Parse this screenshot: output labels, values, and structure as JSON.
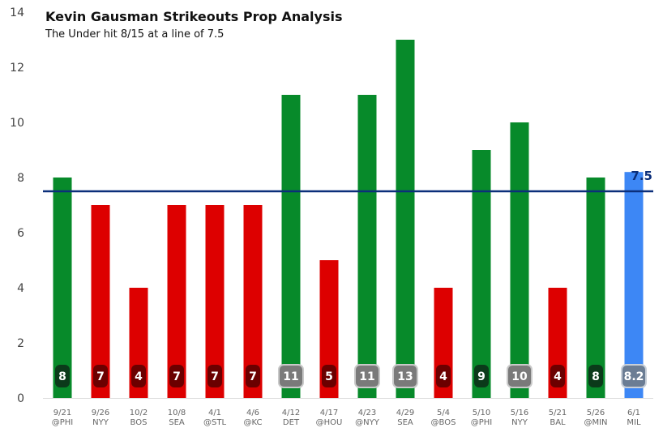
{
  "title": "Kevin Gausman Strikeouts Prop Analysis",
  "subtitle": "The Under hit 8/15 at a line of 7.5",
  "colors": {
    "over": "#078a2a",
    "under": "#dd0000",
    "projection": "#3d87f5",
    "line": "#0b2f7a",
    "label_dark_green": "#0b3a1a",
    "label_dark_red": "#6b0000",
    "label_grey": "#7a7a7a",
    "label_blue_grey": "#6b7d94"
  },
  "chart_data": {
    "type": "bar",
    "title": "Kevin Gausman Strikeouts Prop Analysis",
    "subtitle": "The Under hit 8/15 at a line of 7.5",
    "xlabel": "",
    "ylabel": "",
    "ylim": [
      0,
      14
    ],
    "yticks": [
      0,
      2,
      4,
      6,
      8,
      10,
      12,
      14
    ],
    "grid": false,
    "prop_line": 7.5,
    "prop_line_label": "7.5",
    "categories": [
      {
        "date": "9/21",
        "opponent": "@PHI"
      },
      {
        "date": "9/26",
        "opponent": "NYY"
      },
      {
        "date": "10/2",
        "opponent": "BOS"
      },
      {
        "date": "10/8",
        "opponent": "SEA"
      },
      {
        "date": "4/1",
        "opponent": "@STL"
      },
      {
        "date": "4/6",
        "opponent": "@KC"
      },
      {
        "date": "4/12",
        "opponent": "DET"
      },
      {
        "date": "4/17",
        "opponent": "@HOU"
      },
      {
        "date": "4/23",
        "opponent": "@NYY"
      },
      {
        "date": "4/29",
        "opponent": "SEA"
      },
      {
        "date": "5/4",
        "opponent": "@BOS"
      },
      {
        "date": "5/10",
        "opponent": "@PHI"
      },
      {
        "date": "5/16",
        "opponent": "NYY"
      },
      {
        "date": "5/21",
        "opponent": "BAL"
      },
      {
        "date": "5/26",
        "opponent": "@MIN"
      },
      {
        "date": "6/1",
        "opponent": "MIL"
      }
    ],
    "values": [
      8,
      7,
      4,
      7,
      7,
      7,
      11,
      5,
      11,
      13,
      4,
      9,
      10,
      4,
      8,
      8.2
    ],
    "value_labels": [
      "8",
      "7",
      "4",
      "7",
      "7",
      "7",
      "11",
      "5",
      "11",
      "13",
      "4",
      "9",
      "10",
      "4",
      "8",
      "8.2"
    ],
    "bar_status": [
      "over",
      "under",
      "under",
      "under",
      "under",
      "under",
      "over",
      "under",
      "over",
      "over",
      "under",
      "over",
      "over",
      "under",
      "over",
      "projection"
    ]
  }
}
